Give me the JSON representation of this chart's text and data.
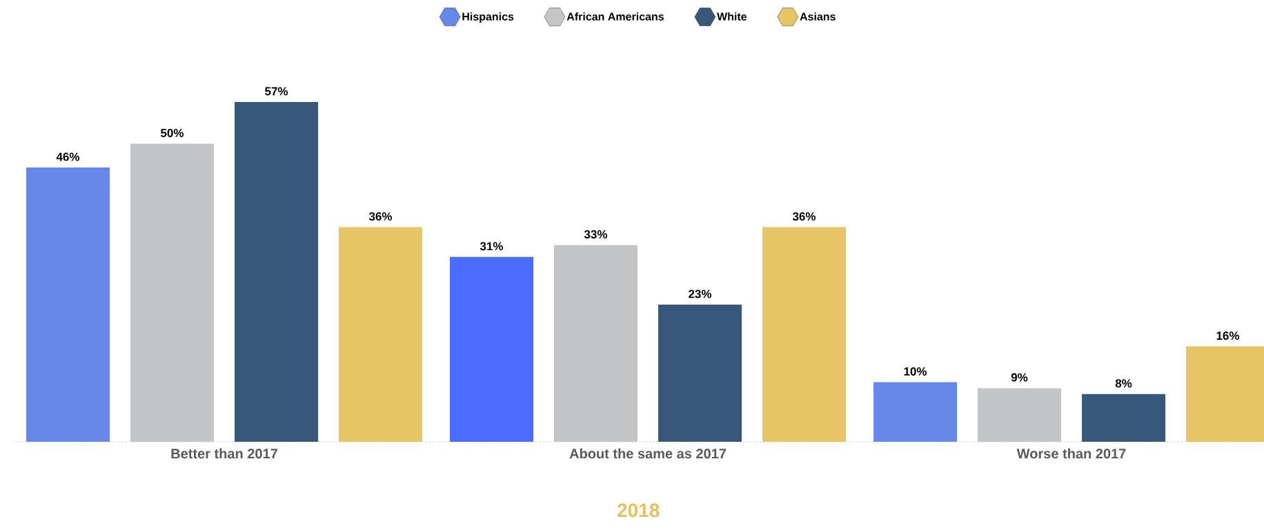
{
  "chart_data": {
    "type": "bar",
    "title": "2018",
    "categories": [
      "Better than 2017",
      "About the same as 2017",
      "Worse than 2017"
    ],
    "legend": "top",
    "series": [
      {
        "name": "Hispanics",
        "color": "#6688e8",
        "colors": [
          "#6688e8",
          "#4d6bfe",
          "#6688e8"
        ],
        "values": [
          46,
          31,
          10
        ],
        "value_labels": [
          "46%",
          "31%",
          "10%"
        ]
      },
      {
        "name": "African Americans",
        "color": "#c4c5c7",
        "values": [
          50,
          33,
          9
        ],
        "value_labels": [
          "50%",
          "33%",
          "9%"
        ]
      },
      {
        "name": "White",
        "color": "#37587b",
        "values": [
          57,
          23,
          8
        ],
        "value_labels": [
          "57%",
          "23%",
          "8%"
        ]
      },
      {
        "name": "Asians",
        "color": "#e7c566",
        "values": [
          36,
          36,
          16
        ],
        "value_labels": [
          "36%",
          "36%",
          "16%"
        ]
      }
    ]
  }
}
